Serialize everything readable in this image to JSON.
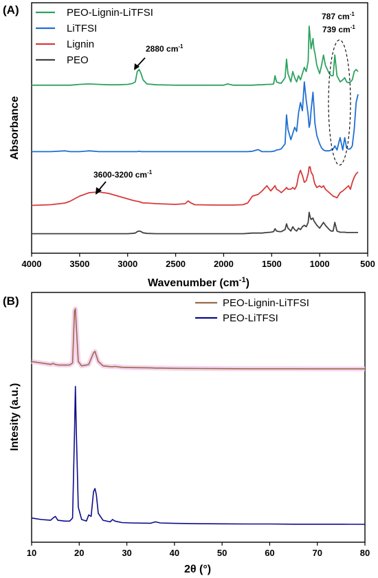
{
  "chart_data": [
    {
      "type": "line",
      "panel_label": "(A)",
      "xlabel_main": "Wavenumber (cm",
      "xlabel_sup": "-1",
      "xlabel_end": ")",
      "ylabel": "Absorbance",
      "xlim": [
        4000,
        500
      ],
      "x_ticks": [
        4000,
        3500,
        3000,
        2500,
        2000,
        1500,
        1000,
        500
      ],
      "y_tick_labels": false,
      "grid": false,
      "legend_position": "top-left",
      "x": [
        4000,
        3800,
        3650,
        3600,
        3500,
        3400,
        3300,
        3200,
        3100,
        3000,
        2950,
        2920,
        2900,
        2880,
        2860,
        2840,
        2800,
        2700,
        2500,
        2400,
        2370,
        2340,
        2300,
        2100,
        2000,
        1960,
        1900,
        1800,
        1750,
        1700,
        1640,
        1600,
        1550,
        1510,
        1480,
        1465,
        1450,
        1420,
        1400,
        1360,
        1345,
        1330,
        1300,
        1280,
        1260,
        1240,
        1220,
        1200,
        1180,
        1160,
        1140,
        1120,
        1110,
        1100,
        1090,
        1070,
        1060,
        1050,
        1030,
        1000,
        980,
        960,
        940,
        900,
        880,
        860,
        842,
        820,
        787,
        760,
        739,
        720,
        700,
        680,
        660,
        640,
        620,
        600
      ],
      "series": [
        {
          "name": "PEO-Lignin-LiTFSI",
          "color": "#2ca25f",
          "values": [
            0.2,
            0.2,
            0.2,
            0.2,
            0.4,
            0.5,
            0.4,
            0.3,
            0.3,
            0.4,
            0.6,
            1.0,
            3.5,
            4.0,
            3.0,
            1.5,
            0.5,
            0.3,
            0.2,
            0.2,
            0.2,
            0.2,
            0.2,
            0.2,
            0.2,
            0.5,
            0.2,
            0.2,
            0.2,
            0.2,
            0.3,
            0.3,
            0.4,
            0.4,
            0.5,
            2.5,
            1.0,
            0.7,
            0.7,
            2.0,
            6.5,
            3.0,
            1.0,
            3.5,
            2.0,
            1.0,
            2.5,
            1.5,
            3.0,
            4.5,
            3.5,
            6.0,
            14.5,
            12.0,
            9.0,
            11.5,
            9.0,
            8.0,
            5.0,
            3.0,
            5.0,
            7.5,
            5.0,
            3.0,
            2.5,
            2.5,
            7.5,
            2.5,
            1.0,
            1.5,
            2.0,
            1.0,
            0.8,
            1.0,
            1.5,
            3.5,
            4.0,
            3.5
          ]
        },
        {
          "name": "LiTFSI",
          "color": "#1f6fd1",
          "values": [
            0.1,
            0.1,
            0.3,
            0.1,
            0.1,
            0.3,
            0.1,
            0.1,
            0.1,
            0.1,
            0.1,
            0.1,
            0.1,
            0.2,
            0.1,
            0.1,
            0.1,
            0.1,
            0.1,
            0.1,
            0.1,
            0.1,
            0.1,
            0.1,
            0.1,
            0.1,
            0.1,
            0.1,
            0.1,
            0.2,
            0.6,
            0.1,
            0.1,
            0.1,
            0.2,
            0.3,
            0.5,
            0.6,
            0.8,
            2.0,
            9.0,
            5.5,
            3.0,
            4.5,
            6.0,
            5.0,
            9.5,
            12.0,
            10.0,
            17.0,
            12.5,
            9.0,
            6.0,
            7.0,
            10.0,
            14.5,
            11.0,
            7.0,
            4.0,
            2.0,
            1.0,
            0.5,
            0.3,
            0.3,
            0.5,
            0.7,
            1.5,
            0.5,
            3.5,
            0.5,
            3.5,
            1.0,
            0.7,
            0.8,
            1.5,
            5.5,
            12.0,
            14.0
          ]
        },
        {
          "name": "Lignin",
          "color": "#d8393a",
          "values": [
            0.3,
            0.5,
            1.0,
            1.5,
            3.0,
            4.0,
            4.2,
            3.8,
            3.0,
            2.2,
            1.8,
            1.6,
            1.5,
            1.4,
            1.2,
            1.0,
            1.0,
            0.8,
            0.6,
            0.8,
            1.6,
            1.0,
            0.5,
            0.4,
            0.4,
            0.4,
            0.4,
            0.5,
            1.0,
            3.0,
            3.5,
            4.5,
            6.0,
            4.5,
            5.5,
            6.0,
            5.0,
            4.5,
            4.0,
            5.0,
            5.5,
            5.0,
            5.0,
            5.5,
            5.0,
            6.0,
            9.0,
            10.5,
            9.0,
            7.0,
            7.5,
            9.5,
            11.5,
            11.5,
            10.0,
            9.0,
            7.5,
            6.5,
            5.5,
            6.0,
            5.5,
            6.0,
            5.0,
            4.0,
            3.5,
            3.0,
            2.8,
            2.5,
            4.0,
            4.5,
            5.0,
            5.5,
            6.0,
            5.0,
            7.0,
            8.5,
            9.5,
            10.0
          ]
        },
        {
          "name": "PEO",
          "color": "#404040",
          "values": [
            0.1,
            0.1,
            0.1,
            0.1,
            0.1,
            0.1,
            0.1,
            0.1,
            0.1,
            0.1,
            0.2,
            0.3,
            0.8,
            1.0,
            0.8,
            0.4,
            0.2,
            0.1,
            0.1,
            0.1,
            0.1,
            0.1,
            0.1,
            0.1,
            0.1,
            0.1,
            0.1,
            0.1,
            0.2,
            0.3,
            0.3,
            0.3,
            0.5,
            0.6,
            0.8,
            1.8,
            1.0,
            0.8,
            0.8,
            1.5,
            3.5,
            2.0,
            1.0,
            2.5,
            1.5,
            1.0,
            2.0,
            1.5,
            2.5,
            3.0,
            2.5,
            4.0,
            7.5,
            6.0,
            5.0,
            5.5,
            4.5,
            4.0,
            3.0,
            2.0,
            3.0,
            4.0,
            3.0,
            1.5,
            1.0,
            1.0,
            4.0,
            1.0,
            0.6,
            0.6,
            0.6,
            0.5,
            0.5,
            0.5,
            0.5,
            0.5,
            0.5,
            0.5
          ]
        }
      ],
      "annotations": {
        "peak_2880_label": "2880 cm",
        "peak_2880_sup": "-1",
        "band_oh_label": "3600-3200 cm",
        "band_oh_sup": "-1",
        "peak_787_label": "787 cm",
        "peak_787_sup": "-1",
        "peak_739_label": "739 cm",
        "peak_739_sup": "-1"
      }
    },
    {
      "type": "line",
      "panel_label": "(B)",
      "xlabel": "2θ (°)",
      "ylabel": "Intesity (a.u.)",
      "xlim": [
        10,
        80
      ],
      "x_ticks": [
        10,
        20,
        30,
        40,
        50,
        60,
        70,
        80
      ],
      "y_tick_labels": false,
      "grid": false,
      "legend_position": "top-right",
      "x": [
        10,
        12,
        14,
        14.5,
        15,
        15.5,
        17,
        18,
        18.6,
        19.0,
        19.2,
        19.4,
        19.8,
        20.5,
        21.5,
        22.0,
        22.5,
        23.0,
        23.3,
        23.6,
        24.0,
        25,
        26.5,
        27,
        27.5,
        29,
        31,
        35,
        36,
        37,
        40,
        45,
        50,
        55,
        60,
        65,
        70,
        75,
        80
      ],
      "series": [
        {
          "name": "PEO-Lignin-LiTFSI",
          "color": "#9a6a45",
          "values": [
            6.0,
            5.0,
            4.0,
            4.6,
            4.0,
            3.6,
            3.5,
            3.6,
            5.0,
            41.0,
            42.5,
            30.0,
            6.0,
            3.0,
            3.5,
            4.0,
            8.0,
            12.0,
            13.0,
            10.0,
            6.0,
            3.0,
            2.5,
            2.4,
            2.6,
            2.0,
            1.8,
            1.6,
            1.5,
            1.5,
            1.3,
            1.2,
            1.1,
            1.0,
            1.0,
            1.0,
            0.9,
            0.9,
            0.9
          ]
        },
        {
          "name": "PEO-LiTFSI",
          "color": "#0b0b8c",
          "values": [
            5.0,
            4.0,
            3.5,
            5.0,
            6.0,
            3.5,
            3.0,
            3.0,
            5.0,
            60.0,
            90.0,
            60.0,
            12.0,
            4.0,
            3.0,
            7.0,
            6.0,
            22.0,
            24.0,
            20.0,
            8.0,
            3.5,
            2.5,
            4.0,
            3.0,
            2.0,
            1.8,
            1.6,
            2.5,
            1.8,
            1.5,
            1.3,
            1.2,
            1.1,
            1.1,
            1.0,
            1.0,
            1.0,
            0.9
          ]
        }
      ]
    }
  ]
}
